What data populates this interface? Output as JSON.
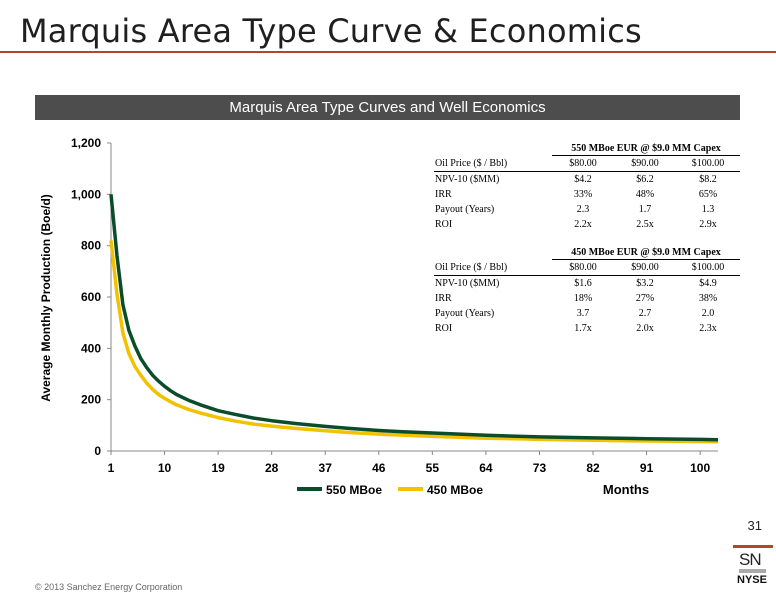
{
  "slide": {
    "title": "Marquis Area Type Curve & Economics",
    "banner": "Marquis Area Type Curves and Well Economics",
    "page_number": "31",
    "copyright": "© 2013 Sanchez Energy Corporation",
    "logo_text": "SN",
    "logo_exchange": "NYSE",
    "accent_color": "#b4452a"
  },
  "chart_data": {
    "type": "line",
    "title": "",
    "xlabel": "Months",
    "ylabel": "Average Monthly Production (Boe/d)",
    "xlim": [
      1,
      103
    ],
    "ylim": [
      0,
      1200
    ],
    "x_ticks": [
      "1",
      "10",
      "19",
      "28",
      "37",
      "46",
      "55",
      "64",
      "73",
      "82",
      "91",
      "100"
    ],
    "y_ticks": [
      "0",
      "200",
      "400",
      "600",
      "800",
      "1,000",
      "1,200"
    ],
    "grid": false,
    "legend_position": "bottom-left",
    "series": [
      {
        "name": "550 MBoe",
        "color": "#0b4d2a",
        "x": [
          1,
          2,
          3,
          4,
          5,
          6,
          7,
          8,
          9,
          10,
          11,
          12,
          14,
          16,
          19,
          22,
          25,
          28,
          32,
          37,
          41,
          46,
          50,
          55,
          60,
          64,
          70,
          73,
          82,
          91,
          100,
          103
        ],
        "values": [
          1000,
          760,
          570,
          470,
          410,
          360,
          325,
          295,
          272,
          252,
          235,
          220,
          198,
          180,
          157,
          142,
          128,
          118,
          107,
          96,
          88,
          80,
          75,
          70,
          65,
          61,
          57,
          55,
          51,
          48,
          45,
          44
        ]
      },
      {
        "name": "450 MBoe",
        "color": "#f2c200",
        "x": [
          1,
          2,
          3,
          4,
          5,
          6,
          7,
          8,
          9,
          10,
          11,
          12,
          14,
          16,
          19,
          22,
          25,
          28,
          32,
          37,
          41,
          46,
          50,
          55,
          60,
          64,
          70,
          73,
          82,
          91,
          100,
          103
        ],
        "values": [
          820,
          610,
          460,
          380,
          330,
          295,
          265,
          240,
          220,
          205,
          192,
          180,
          162,
          148,
          130,
          116,
          105,
          97,
          88,
          79,
          72,
          66,
          62,
          57,
          53,
          50,
          47,
          45,
          42,
          39,
          37,
          36
        ]
      }
    ]
  },
  "economics_tables": [
    {
      "caption": "550 MBoe EUR @ $9.0 MM Capex",
      "rows": [
        {
          "label": "Oil Price ($ / Bbl)",
          "v1": "$80.00",
          "v2": "$90.00",
          "v3": "$100.00"
        },
        {
          "label": "NPV-10 ($MM)",
          "v1": "$4.2",
          "v2": "$6.2",
          "v3": "$8.2"
        },
        {
          "label": "IRR",
          "v1": "33%",
          "v2": "48%",
          "v3": "65%"
        },
        {
          "label": "Payout (Years)",
          "v1": "2.3",
          "v2": "1.7",
          "v3": "1.3"
        },
        {
          "label": "ROI",
          "v1": "2.2x",
          "v2": "2.5x",
          "v3": "2.9x"
        }
      ]
    },
    {
      "caption": "450 MBoe EUR @ $9.0 MM Capex",
      "rows": [
        {
          "label": "Oil Price ($ / Bbl)",
          "v1": "$80.00",
          "v2": "$90.00",
          "v3": "$100.00"
        },
        {
          "label": "NPV-10 ($MM)",
          "v1": "$1.6",
          "v2": "$3.2",
          "v3": "$4.9"
        },
        {
          "label": "IRR",
          "v1": "18%",
          "v2": "27%",
          "v3": "38%"
        },
        {
          "label": "Payout (Years)",
          "v1": "3.7",
          "v2": "2.7",
          "v3": "2.0"
        },
        {
          "label": "ROI",
          "v1": "1.7x",
          "v2": "2.0x",
          "v3": "2.3x"
        }
      ]
    }
  ]
}
